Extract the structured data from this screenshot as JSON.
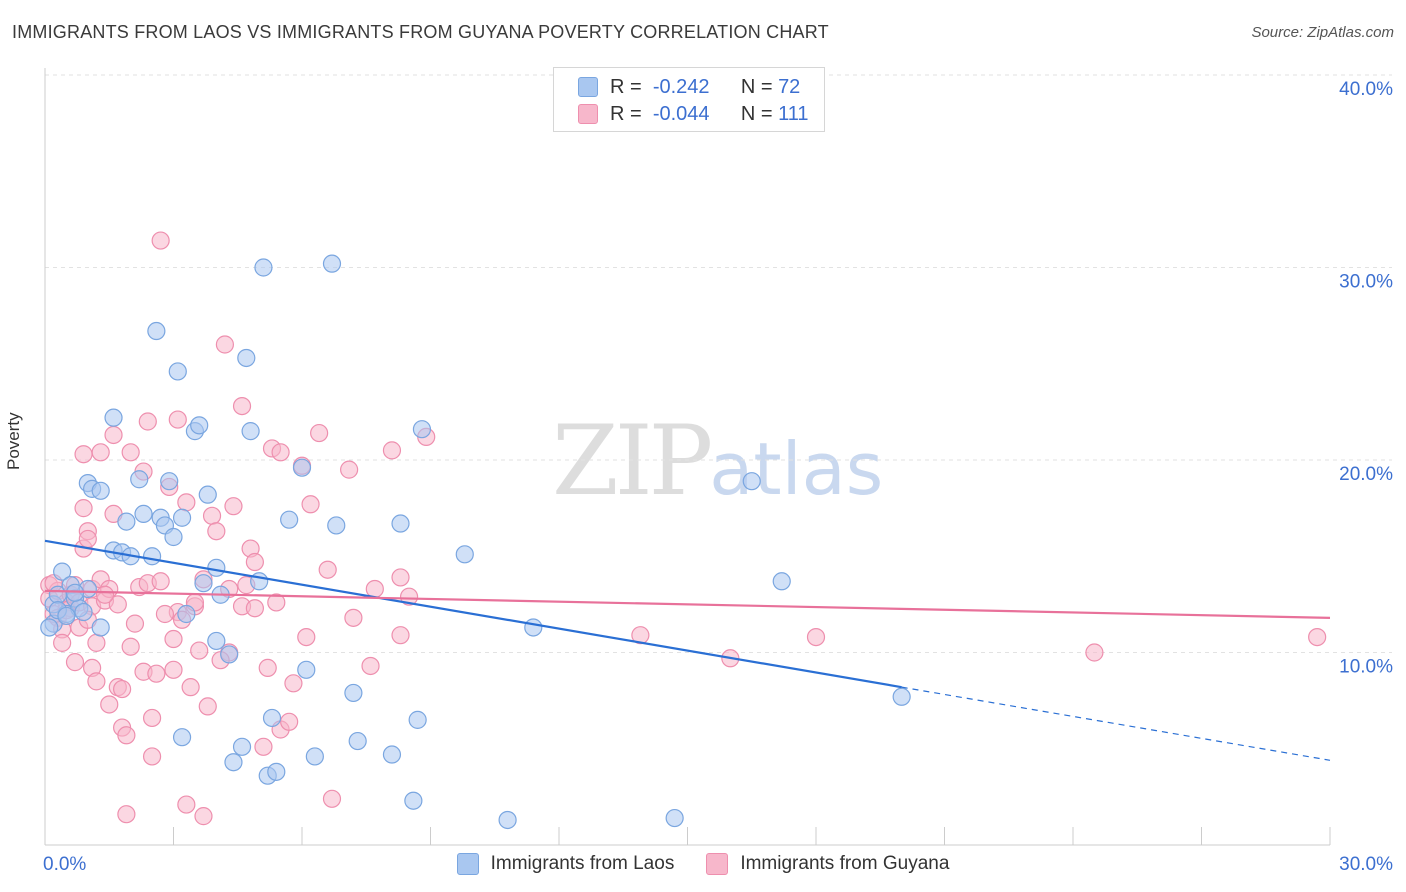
{
  "header": {
    "title": "IMMIGRANTS FROM LAOS VS IMMIGRANTS FROM GUYANA POVERTY CORRELATION CHART",
    "source": "Source: ZipAtlas.com"
  },
  "watermark": {
    "zip": "ZIP",
    "atlas": "atlas"
  },
  "legend": {
    "rows": [
      {
        "r_label": "R =",
        "r_value": "-0.242",
        "n_label": "N =",
        "n_value": "72"
      },
      {
        "r_label": "R =",
        "r_value": "-0.044",
        "n_label": "N =",
        "n_value": "111"
      }
    ]
  },
  "bottom_legend": {
    "laos": "Immigrants from Laos",
    "guyana": "Immigrants from Guyana"
  },
  "colors": {
    "laos_fill": "#a9c7f0",
    "laos_stroke": "#7aa6e0",
    "laos_line": "#2a6fd4",
    "guyana_fill": "#f7b7cb",
    "guyana_stroke": "#ee8fae",
    "guyana_line": "#e8719a",
    "tick_text": "#3c6fd0",
    "grid": "#e2e2e2"
  },
  "chart_data": {
    "type": "scatter",
    "title": "IMMIGRANTS FROM LAOS VS IMMIGRANTS FROM GUYANA POVERTY CORRELATION CHART",
    "xlabel": "",
    "ylabel": "Poverty",
    "xlim": [
      0,
      30
    ],
    "ylim": [
      0,
      40
    ],
    "x_tick_labels": [
      "0.0%",
      "30.0%"
    ],
    "y_ticks": [
      10,
      20,
      30,
      40
    ],
    "y_tick_labels": [
      "10.0%",
      "20.0%",
      "30.0%",
      "40.0%"
    ],
    "grid": true,
    "series": [
      {
        "name": "Immigrants from Laos",
        "r": -0.242,
        "n": 72,
        "trend": {
          "x0": 0,
          "y0": 15.8,
          "x1": 20.0,
          "y1": 8.2,
          "dash_to_x": 30,
          "dash_to_y": 4.4
        },
        "points": [
          [
            0.2,
            12.5
          ],
          [
            0.2,
            11.5
          ],
          [
            0.3,
            13.0
          ],
          [
            0.4,
            14.2
          ],
          [
            0.5,
            12.0
          ],
          [
            0.6,
            13.5
          ],
          [
            0.7,
            12.8
          ],
          [
            0.8,
            12.3
          ],
          [
            1.0,
            13.3
          ],
          [
            1.0,
            18.8
          ],
          [
            1.1,
            18.5
          ],
          [
            1.3,
            18.4
          ],
          [
            1.6,
            22.2
          ],
          [
            1.6,
            15.3
          ],
          [
            1.8,
            15.2
          ],
          [
            1.9,
            16.8
          ],
          [
            2.0,
            15.0
          ],
          [
            2.2,
            19.0
          ],
          [
            2.3,
            17.2
          ],
          [
            2.5,
            15.0
          ],
          [
            2.6,
            26.7
          ],
          [
            2.7,
            17.0
          ],
          [
            2.8,
            16.6
          ],
          [
            2.9,
            18.9
          ],
          [
            3.0,
            16.0
          ],
          [
            3.1,
            24.6
          ],
          [
            3.2,
            5.6
          ],
          [
            3.2,
            17.0
          ],
          [
            3.3,
            12.0
          ],
          [
            3.5,
            21.5
          ],
          [
            3.6,
            21.8
          ],
          [
            3.7,
            13.6
          ],
          [
            3.8,
            18.2
          ],
          [
            4.0,
            14.4
          ],
          [
            4.0,
            10.6
          ],
          [
            4.1,
            13.0
          ],
          [
            4.3,
            9.9
          ],
          [
            4.4,
            4.3
          ],
          [
            4.6,
            5.1
          ],
          [
            4.7,
            25.3
          ],
          [
            4.8,
            21.5
          ],
          [
            5.0,
            13.7
          ],
          [
            5.1,
            30.0
          ],
          [
            5.2,
            3.6
          ],
          [
            5.3,
            6.6
          ],
          [
            5.4,
            3.8
          ],
          [
            5.7,
            16.9
          ],
          [
            6.0,
            19.6
          ],
          [
            6.1,
            9.1
          ],
          [
            6.3,
            4.6
          ],
          [
            6.7,
            30.2
          ],
          [
            6.8,
            16.6
          ],
          [
            7.2,
            7.9
          ],
          [
            7.3,
            5.4
          ],
          [
            8.1,
            4.7
          ],
          [
            8.3,
            16.7
          ],
          [
            8.6,
            2.3
          ],
          [
            8.7,
            6.5
          ],
          [
            8.8,
            21.6
          ],
          [
            9.8,
            15.1
          ],
          [
            10.8,
            1.3
          ],
          [
            11.4,
            11.3
          ],
          [
            14.7,
            1.4
          ],
          [
            16.5,
            18.9
          ],
          [
            17.2,
            13.7
          ],
          [
            20.0,
            7.7
          ],
          [
            0.3,
            12.2
          ],
          [
            0.9,
            12.1
          ],
          [
            0.1,
            11.3
          ],
          [
            0.5,
            11.9
          ],
          [
            0.7,
            13.1
          ],
          [
            1.3,
            11.3
          ]
        ]
      },
      {
        "name": "Immigrants from Guyana",
        "r": -0.044,
        "n": 111,
        "trend": {
          "x0": 0,
          "y0": 13.2,
          "x1": 30,
          "y1": 11.8
        },
        "points": [
          [
            0.1,
            13.5
          ],
          [
            0.1,
            12.8
          ],
          [
            0.2,
            12.0
          ],
          [
            0.3,
            13.2
          ],
          [
            0.3,
            11.8
          ],
          [
            0.4,
            11.2
          ],
          [
            0.4,
            10.5
          ],
          [
            0.5,
            12.6
          ],
          [
            0.6,
            13.0
          ],
          [
            0.6,
            12.3
          ],
          [
            0.7,
            9.5
          ],
          [
            0.7,
            13.5
          ],
          [
            0.8,
            12.6
          ],
          [
            0.9,
            20.3
          ],
          [
            0.9,
            17.5
          ],
          [
            0.9,
            15.4
          ],
          [
            1.0,
            16.3
          ],
          [
            1.0,
            15.9
          ],
          [
            1.1,
            13.3
          ],
          [
            1.1,
            12.4
          ],
          [
            1.1,
            9.2
          ],
          [
            1.2,
            8.5
          ],
          [
            1.2,
            10.5
          ],
          [
            1.3,
            13.8
          ],
          [
            1.3,
            20.4
          ],
          [
            1.4,
            12.7
          ],
          [
            1.5,
            7.3
          ],
          [
            1.5,
            13.3
          ],
          [
            1.6,
            21.3
          ],
          [
            1.6,
            17.2
          ],
          [
            1.7,
            12.5
          ],
          [
            1.7,
            8.2
          ],
          [
            1.8,
            8.1
          ],
          [
            1.8,
            6.1
          ],
          [
            1.9,
            5.7
          ],
          [
            1.9,
            1.6
          ],
          [
            2.0,
            10.3
          ],
          [
            2.0,
            20.4
          ],
          [
            2.1,
            11.5
          ],
          [
            2.2,
            13.4
          ],
          [
            2.3,
            19.4
          ],
          [
            2.3,
            9.0
          ],
          [
            2.4,
            13.6
          ],
          [
            2.4,
            22.0
          ],
          [
            2.5,
            4.6
          ],
          [
            2.5,
            6.6
          ],
          [
            2.6,
            8.9
          ],
          [
            2.7,
            13.7
          ],
          [
            2.7,
            31.4
          ],
          [
            2.9,
            18.6
          ],
          [
            3.0,
            9.1
          ],
          [
            3.0,
            10.7
          ],
          [
            3.1,
            22.1
          ],
          [
            3.1,
            12.1
          ],
          [
            3.2,
            11.7
          ],
          [
            3.3,
            17.8
          ],
          [
            3.3,
            2.1
          ],
          [
            3.4,
            8.2
          ],
          [
            3.5,
            12.4
          ],
          [
            3.6,
            10.1
          ],
          [
            3.7,
            13.8
          ],
          [
            3.7,
            1.5
          ],
          [
            3.8,
            7.2
          ],
          [
            3.9,
            17.1
          ],
          [
            4.0,
            16.3
          ],
          [
            4.2,
            26.0
          ],
          [
            4.3,
            10.0
          ],
          [
            4.3,
            13.3
          ],
          [
            4.4,
            17.6
          ],
          [
            4.6,
            12.4
          ],
          [
            4.6,
            22.8
          ],
          [
            4.7,
            13.5
          ],
          [
            4.8,
            15.4
          ],
          [
            4.9,
            14.7
          ],
          [
            4.9,
            12.3
          ],
          [
            5.1,
            5.1
          ],
          [
            5.2,
            9.2
          ],
          [
            5.3,
            20.6
          ],
          [
            5.4,
            12.6
          ],
          [
            5.5,
            6.0
          ],
          [
            5.5,
            20.4
          ],
          [
            5.8,
            8.4
          ],
          [
            6.0,
            19.7
          ],
          [
            6.1,
            10.8
          ],
          [
            6.2,
            17.7
          ],
          [
            6.4,
            21.4
          ],
          [
            6.6,
            14.3
          ],
          [
            6.7,
            2.4
          ],
          [
            7.1,
            19.5
          ],
          [
            7.2,
            11.8
          ],
          [
            7.6,
            9.3
          ],
          [
            7.7,
            13.3
          ],
          [
            8.1,
            20.5
          ],
          [
            8.3,
            13.9
          ],
          [
            8.3,
            10.9
          ],
          [
            8.5,
            12.9
          ],
          [
            8.9,
            21.2
          ],
          [
            13.9,
            10.9
          ],
          [
            16.0,
            9.7
          ],
          [
            18.0,
            10.8
          ],
          [
            24.5,
            10.0
          ],
          [
            29.7,
            10.8
          ],
          [
            0.2,
            13.6
          ],
          [
            0.5,
            12.2
          ],
          [
            0.8,
            11.3
          ],
          [
            1.4,
            13.0
          ],
          [
            2.8,
            12.0
          ],
          [
            4.1,
            9.6
          ],
          [
            5.7,
            6.4
          ],
          [
            3.5,
            12.6
          ],
          [
            1.0,
            11.7
          ]
        ]
      }
    ]
  }
}
